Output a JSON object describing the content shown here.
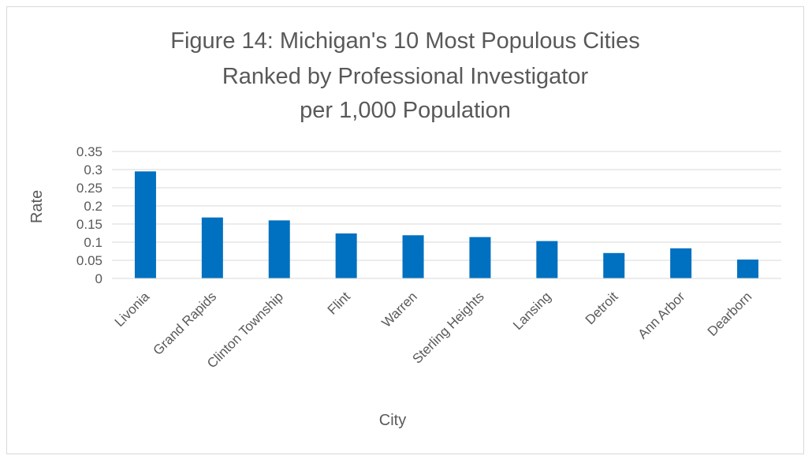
{
  "chart_data": {
    "type": "bar",
    "title_lines": [
      "Figure 14: Michigan's 10 Most Populous Cities",
      "Ranked by Professional Investigator",
      "per 1,000 Population"
    ],
    "xlabel": "City",
    "ylabel": "Rate",
    "categories": [
      "Livonia",
      "Grand Rapids",
      "Clinton Township",
      "Flint",
      "Warren",
      "Sterling Heights",
      "Lansing",
      "Detroit",
      "Ann Arbor",
      "Dearborn"
    ],
    "values": [
      0.295,
      0.168,
      0.16,
      0.124,
      0.119,
      0.114,
      0.103,
      0.07,
      0.083,
      0.052
    ],
    "ylim": [
      0,
      0.35
    ],
    "yticks": [
      "0",
      "0.05",
      "0.1",
      "0.15",
      "0.2",
      "0.25",
      "0.3",
      "0.35"
    ],
    "grid": true,
    "legend": "none",
    "bar_color": "#0070C0",
    "grid_color": "#d9d9d9",
    "text_color": "#595959"
  }
}
